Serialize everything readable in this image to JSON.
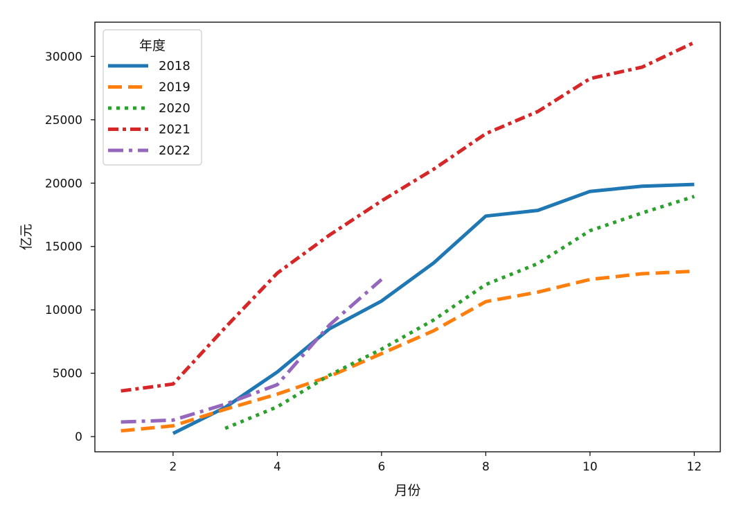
{
  "chart_data": {
    "type": "line",
    "xlabel": "月份",
    "ylabel": "亿元",
    "xlim": [
      0.5,
      12.5
    ],
    "ylim": [
      -1200,
      32700
    ],
    "xticks": [
      2,
      4,
      6,
      8,
      10,
      12
    ],
    "yticks": [
      0,
      5000,
      10000,
      15000,
      20000,
      25000,
      30000
    ],
    "grid": false,
    "legend": {
      "title": "年度",
      "placement": "top-left"
    },
    "series": [
      {
        "name": "2018",
        "color": "#1f77b4",
        "style": "solid",
        "x": [
          2,
          3,
          4,
          5,
          6,
          7,
          8,
          9,
          10,
          11,
          12
        ],
        "y": [
          250,
          2300,
          5100,
          8500,
          10700,
          13700,
          17400,
          17850,
          19350,
          19750,
          19900
        ]
      },
      {
        "name": "2019",
        "color": "#ff7f0e",
        "style": "dashed",
        "x": [
          1,
          2,
          3,
          4,
          5,
          6,
          7,
          8,
          9,
          10,
          11,
          12
        ],
        "y": [
          450,
          850,
          2150,
          3350,
          4750,
          6550,
          8350,
          10650,
          11400,
          12400,
          12850,
          13050
        ]
      },
      {
        "name": "2020",
        "color": "#2ca02c",
        "style": "dotted",
        "x": [
          3,
          4,
          5,
          6,
          7,
          8,
          9,
          10,
          11,
          12
        ],
        "y": [
          650,
          2350,
          4850,
          6900,
          9200,
          12000,
          13650,
          16250,
          17650,
          18950
        ]
      },
      {
        "name": "2021",
        "color": "#d62728",
        "style": "dashdot-dense",
        "x": [
          1,
          2,
          3,
          4,
          5,
          6,
          7,
          8,
          9,
          10,
          11,
          12
        ],
        "y": [
          3600,
          4150,
          8600,
          12900,
          15900,
          18600,
          21100,
          23900,
          25650,
          28250,
          29150,
          31100
        ]
      },
      {
        "name": "2022",
        "color": "#9467bd",
        "style": "dashdot",
        "x": [
          1,
          2,
          3,
          4,
          5,
          6
        ],
        "y": [
          1150,
          1300,
          2550,
          4100,
          8800,
          12400
        ]
      }
    ]
  }
}
